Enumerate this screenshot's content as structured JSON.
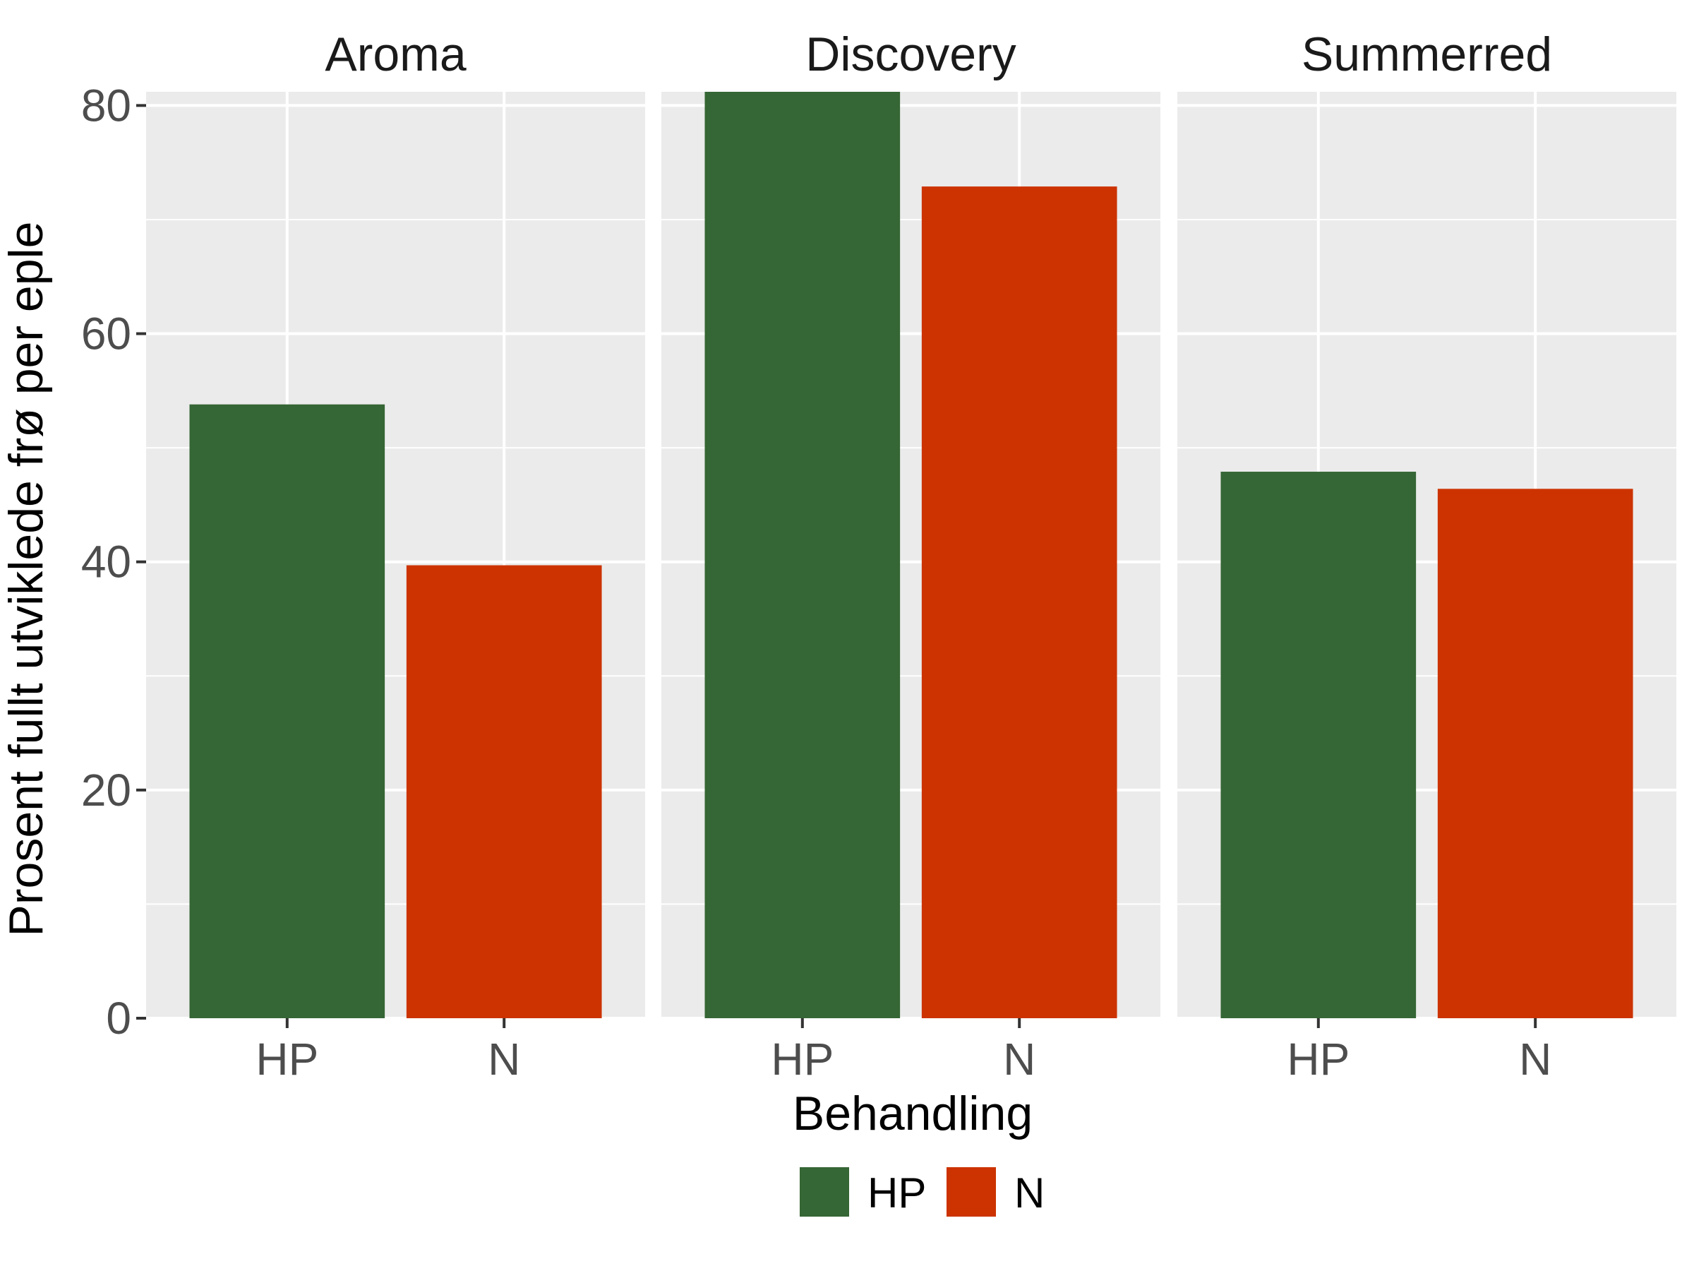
{
  "chart_data": {
    "type": "bar",
    "facet_by": "variety",
    "facets": [
      {
        "title": "Aroma",
        "categories": [
          "HP",
          "N"
        ],
        "values": [
          53.8,
          39.7
        ]
      },
      {
        "title": "Discovery",
        "categories": [
          "HP",
          "N"
        ],
        "values": [
          81.2,
          72.9
        ]
      },
      {
        "title": "Summerred",
        "categories": [
          "HP",
          "N"
        ],
        "values": [
          47.9,
          46.4
        ]
      }
    ],
    "xlabel": "Behandling",
    "ylabel": "Prosent fullt utviklede frø per eple",
    "ylim": [
      0,
      81.2
    ],
    "yticks": [
      0,
      20,
      40,
      60,
      80
    ],
    "grid": true,
    "legend": {
      "position": "bottom",
      "entries": [
        {
          "label": "HP",
          "color": "#356635"
        },
        {
          "label": "N",
          "color": "#cc3300"
        }
      ]
    },
    "colors": {
      "HP": "#356635",
      "N": "#cc3300",
      "panel_bg": "#ebebeb",
      "grid": "#ffffff"
    }
  }
}
